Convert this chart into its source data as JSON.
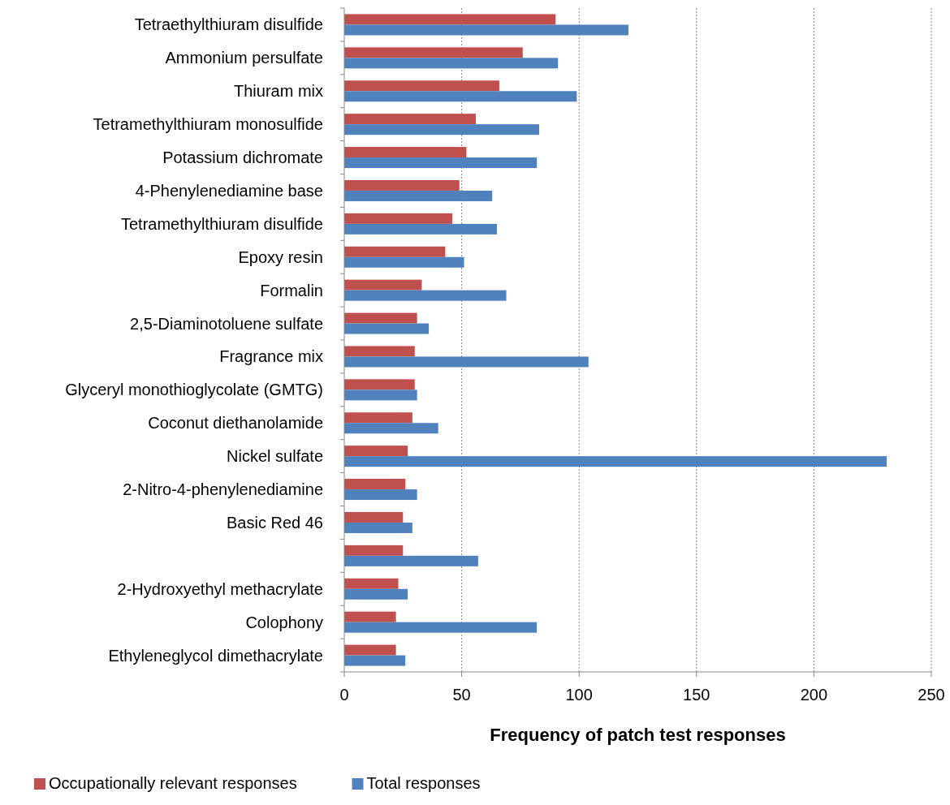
{
  "chart_data": {
    "type": "bar",
    "orientation": "horizontal",
    "xlabel": "Frequency of patch test responses",
    "categories": [
      "Tetraethylthiuram disulfide",
      "Ammonium persulfate",
      "Thiuram mix",
      "Tetramethylthiuram monosulfide",
      "Potassium dichromate",
      "4-Phenylenediamine base",
      "Tetramethylthiuram disulfide",
      "Epoxy resin",
      "Formalin",
      "2,5-Diaminotoluene sulfate",
      "Fragrance mix",
      "Glyceryl monothioglycolate (GMTG)",
      "Coconut diethanolamide",
      "Nickel sulfate",
      "2-Nitro-4-phenylenediamine",
      "Basic Red 46",
      null,
      "2-Hydroxyethyl methacrylate",
      "Colophony",
      "Ethyleneglycol dimethacrylate"
    ],
    "series": [
      {
        "name": "Occupationally relevant responses",
        "color": "#c0504d",
        "values": [
          90,
          76,
          66,
          56,
          52,
          49,
          46,
          43,
          33,
          31,
          30,
          30,
          29,
          27,
          26,
          25,
          25,
          23,
          22,
          22
        ]
      },
      {
        "name": "Total responses",
        "color": "#4f81bd",
        "values": [
          121,
          91,
          99,
          83,
          82,
          63,
          65,
          51,
          69,
          36,
          104,
          31,
          40,
          231,
          31,
          29,
          57,
          27,
          82,
          26
        ]
      }
    ],
    "xlim": [
      0,
      250
    ],
    "xticks": [
      0,
      50,
      100,
      150,
      200,
      250
    ],
    "grid": "x",
    "legend": "bottom"
  }
}
